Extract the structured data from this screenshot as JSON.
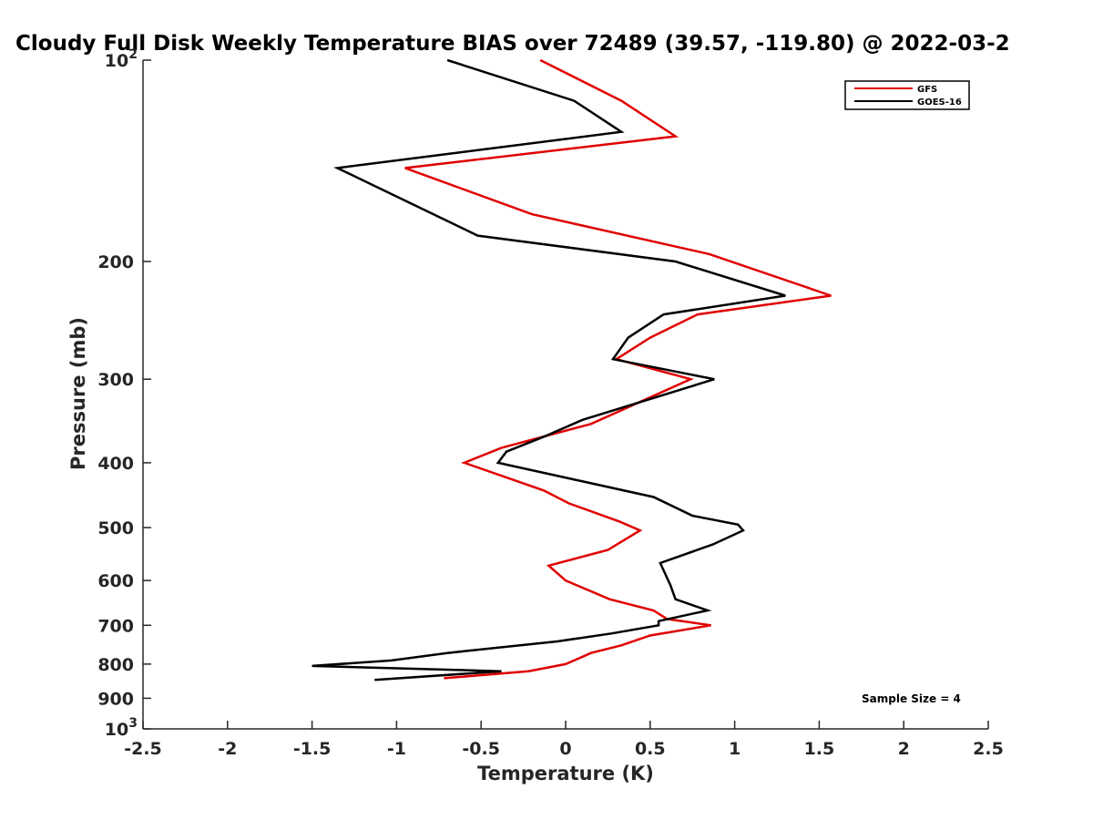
{
  "chart_data": {
    "type": "line",
    "title": "Cloudy Full Disk Weekly Temperature BIAS over 72489 (39.57, -119.80) @ 2022-03-2",
    "xlabel": "Temperature (K)",
    "ylabel": "Pressure (mb)",
    "xlim": [
      -2.5,
      2.5
    ],
    "ylim": [
      100,
      1000
    ],
    "yscale": "log",
    "yreversed": true,
    "xticks": [
      -2.5,
      -2,
      -1.5,
      -1,
      -0.5,
      0,
      0.5,
      1,
      1.5,
      2,
      2.5
    ],
    "xtick_labels": [
      "-2.5",
      "-2",
      "-1.5",
      "-1",
      "-0.5",
      "0",
      "0.5",
      "1",
      "1.5",
      "2",
      "2.5"
    ],
    "yticks": [
      {
        "value": 100,
        "label": "10",
        "sup": "2"
      },
      {
        "value": 200,
        "label": "200",
        "sup": ""
      },
      {
        "value": 300,
        "label": "300",
        "sup": ""
      },
      {
        "value": 400,
        "label": "400",
        "sup": ""
      },
      {
        "value": 500,
        "label": "500",
        "sup": ""
      },
      {
        "value": 600,
        "label": "600",
        "sup": ""
      },
      {
        "value": 700,
        "label": "700",
        "sup": ""
      },
      {
        "value": 800,
        "label": "800",
        "sup": ""
      },
      {
        "value": 900,
        "label": "900",
        "sup": ""
      },
      {
        "value": 1000,
        "label": "10",
        "sup": "3"
      }
    ],
    "grid": false,
    "legend_position": "top-right",
    "series": [
      {
        "name": "GFS",
        "color": "#e00000",
        "points": [
          [
            -0.15,
            100
          ],
          [
            0.33,
            115
          ],
          [
            0.65,
            130
          ],
          [
            -0.95,
            145
          ],
          [
            -0.2,
            170
          ],
          [
            0.85,
            195
          ],
          [
            1.57,
            225
          ],
          [
            0.78,
            240
          ],
          [
            0.5,
            260
          ],
          [
            0.3,
            280
          ],
          [
            0.74,
            300
          ],
          [
            0.15,
            350
          ],
          [
            -0.38,
            380
          ],
          [
            -0.6,
            400
          ],
          [
            -0.13,
            440
          ],
          [
            0.02,
            460
          ],
          [
            0.32,
            490
          ],
          [
            0.44,
            505
          ],
          [
            0.25,
            540
          ],
          [
            -0.1,
            570
          ],
          [
            0.0,
            600
          ],
          [
            0.26,
            640
          ],
          [
            0.52,
            665
          ],
          [
            0.6,
            685
          ],
          [
            0.86,
            700
          ],
          [
            0.5,
            725
          ],
          [
            0.33,
            750
          ],
          [
            0.15,
            770
          ],
          [
            0.1,
            780
          ],
          [
            0.0,
            800
          ],
          [
            -0.22,
            820
          ],
          [
            -0.72,
            840
          ]
        ]
      },
      {
        "name": "GOES-16",
        "color": "#000000",
        "points": [
          [
            -0.7,
            100
          ],
          [
            0.05,
            115
          ],
          [
            0.33,
            128
          ],
          [
            -1.35,
            145
          ],
          [
            -0.52,
            183
          ],
          [
            0.65,
            200
          ],
          [
            1.3,
            225
          ],
          [
            0.58,
            240
          ],
          [
            0.37,
            260
          ],
          [
            0.28,
            280
          ],
          [
            0.88,
            300
          ],
          [
            0.1,
            345
          ],
          [
            -0.12,
            365
          ],
          [
            -0.35,
            385
          ],
          [
            -0.4,
            400
          ],
          [
            0.52,
            450
          ],
          [
            0.75,
            480
          ],
          [
            1.02,
            495
          ],
          [
            1.05,
            505
          ],
          [
            0.87,
            530
          ],
          [
            0.56,
            565
          ],
          [
            0.62,
            610
          ],
          [
            0.65,
            640
          ],
          [
            0.84,
            665
          ],
          [
            0.55,
            690
          ],
          [
            0.55,
            700
          ],
          [
            0.27,
            720
          ],
          [
            -0.05,
            740
          ],
          [
            -0.7,
            770
          ],
          [
            -1.03,
            790
          ],
          [
            -1.5,
            805
          ],
          [
            -0.38,
            820
          ],
          [
            -1.13,
            845
          ]
        ]
      }
    ],
    "annotation": "Sample Size = 4"
  }
}
